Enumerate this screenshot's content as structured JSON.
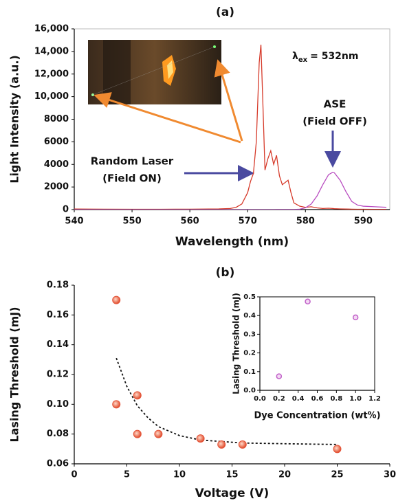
{
  "chart_data": [
    {
      "type": "line",
      "title": "(a)",
      "xlabel": "Wavelength (nm)",
      "ylabel": "Light Intensity (a.u.)",
      "xlim": [
        540,
        594.6
      ],
      "xticks": [
        540,
        550,
        560,
        570,
        580,
        590
      ],
      "ylim": [
        0,
        16000
      ],
      "yticks": [
        0,
        2000,
        4000,
        6000,
        8000,
        {
          "value": 10000,
          "label": "10,000"
        },
        {
          "value": 12000,
          "label": "12,000"
        },
        {
          "value": 14000,
          "label": "14,000"
        },
        {
          "value": 16000,
          "label": "16,000"
        }
      ],
      "x": [
        540,
        545,
        550,
        555,
        560,
        565,
        567,
        568,
        569,
        570,
        570.5,
        571,
        571.5,
        572,
        572.3,
        572.6,
        573,
        573.5,
        574,
        574.5,
        575,
        575.5,
        576,
        576.5,
        577,
        577.5,
        578,
        579,
        580,
        581,
        582,
        583,
        584,
        584.7,
        585,
        586,
        587,
        588,
        589,
        590,
        592,
        594
      ],
      "series": [
        {
          "name": "Random Laser",
          "color": "#d63a2a",
          "values": [
            50,
            40,
            30,
            30,
            40,
            60,
            100,
            200,
            500,
            1500,
            2500,
            3200,
            6000,
            13000,
            14600,
            10000,
            3500,
            4500,
            5200,
            4000,
            4800,
            3000,
            2200,
            2400,
            2600,
            1500,
            600,
            300,
            200,
            250,
            150,
            100,
            120,
            100,
            80,
            60,
            50,
            40,
            30,
            30,
            20,
            20
          ]
        },
        {
          "name": "ASE",
          "color": "#b84cc0",
          "values": [
            0,
            0,
            0,
            0,
            0,
            0,
            0,
            0,
            0,
            0,
            0,
            0,
            0,
            0,
            0,
            0,
            0,
            0,
            0,
            0,
            5,
            5,
            5,
            5,
            5,
            5,
            7,
            37,
            155,
            495,
            1200,
            2200,
            3090,
            3300,
            3260,
            2600,
            1600,
            730,
            400,
            300,
            250,
            200
          ]
        }
      ],
      "annotations": {
        "excitation": {
          "symbol": "λ",
          "subscript": "ex",
          "text": "=  532nm"
        },
        "ase": [
          "ASE",
          "(Field OFF)"
        ],
        "laser": [
          "Random Laser",
          "(Field ON)"
        ]
      }
    },
    {
      "type": "scatter",
      "title": "(b)",
      "xlabel": "Voltage (V)",
      "ylabel": "Lasing Threshold (mJ)",
      "xlim": [
        0,
        30
      ],
      "xticks": [
        0,
        5,
        10,
        15,
        20,
        25,
        30
      ],
      "ylim": [
        0.06,
        0.18
      ],
      "yticks": [
        0.06,
        0.08,
        {
          "value": 0.1,
          "label": "0.10"
        },
        0.12,
        0.14,
        0.16,
        0.18
      ],
      "x": [
        4,
        4,
        6,
        6,
        8,
        12,
        14,
        16,
        25
      ],
      "values": [
        0.17,
        0.1,
        0.106,
        0.08,
        0.08,
        0.077,
        0.073,
        0.073,
        0.07
      ],
      "color": "#e5553a",
      "fit": {
        "x": [
          4,
          5,
          6,
          7,
          8,
          10,
          12,
          14,
          16,
          20,
          25
        ],
        "values": [
          0.131,
          0.112,
          0.099,
          0.091,
          0.085,
          0.079,
          0.076,
          0.075,
          0.074,
          0.0735,
          0.073
        ]
      }
    },
    {
      "type": "scatter",
      "xlabel": "Dye Concentration (wt%)",
      "ylabel": "Lasing Threshold (mJ)",
      "xlim": [
        0,
        1.2
      ],
      "xticks": [
        {
          "value": 0,
          "label": "0.0"
        },
        0.2,
        0.4,
        0.6,
        0.8,
        {
          "value": 1,
          "label": "1.0"
        },
        1.2
      ],
      "ylim": [
        0,
        0.5
      ],
      "yticks": [
        {
          "value": 0,
          "label": "0.0"
        },
        0.1,
        0.2,
        0.3,
        0.4,
        0.5
      ],
      "x": [
        0.2,
        0.5,
        1.0
      ],
      "values": [
        0.075,
        0.475,
        0.39
      ],
      "color": "#c060c8"
    }
  ]
}
